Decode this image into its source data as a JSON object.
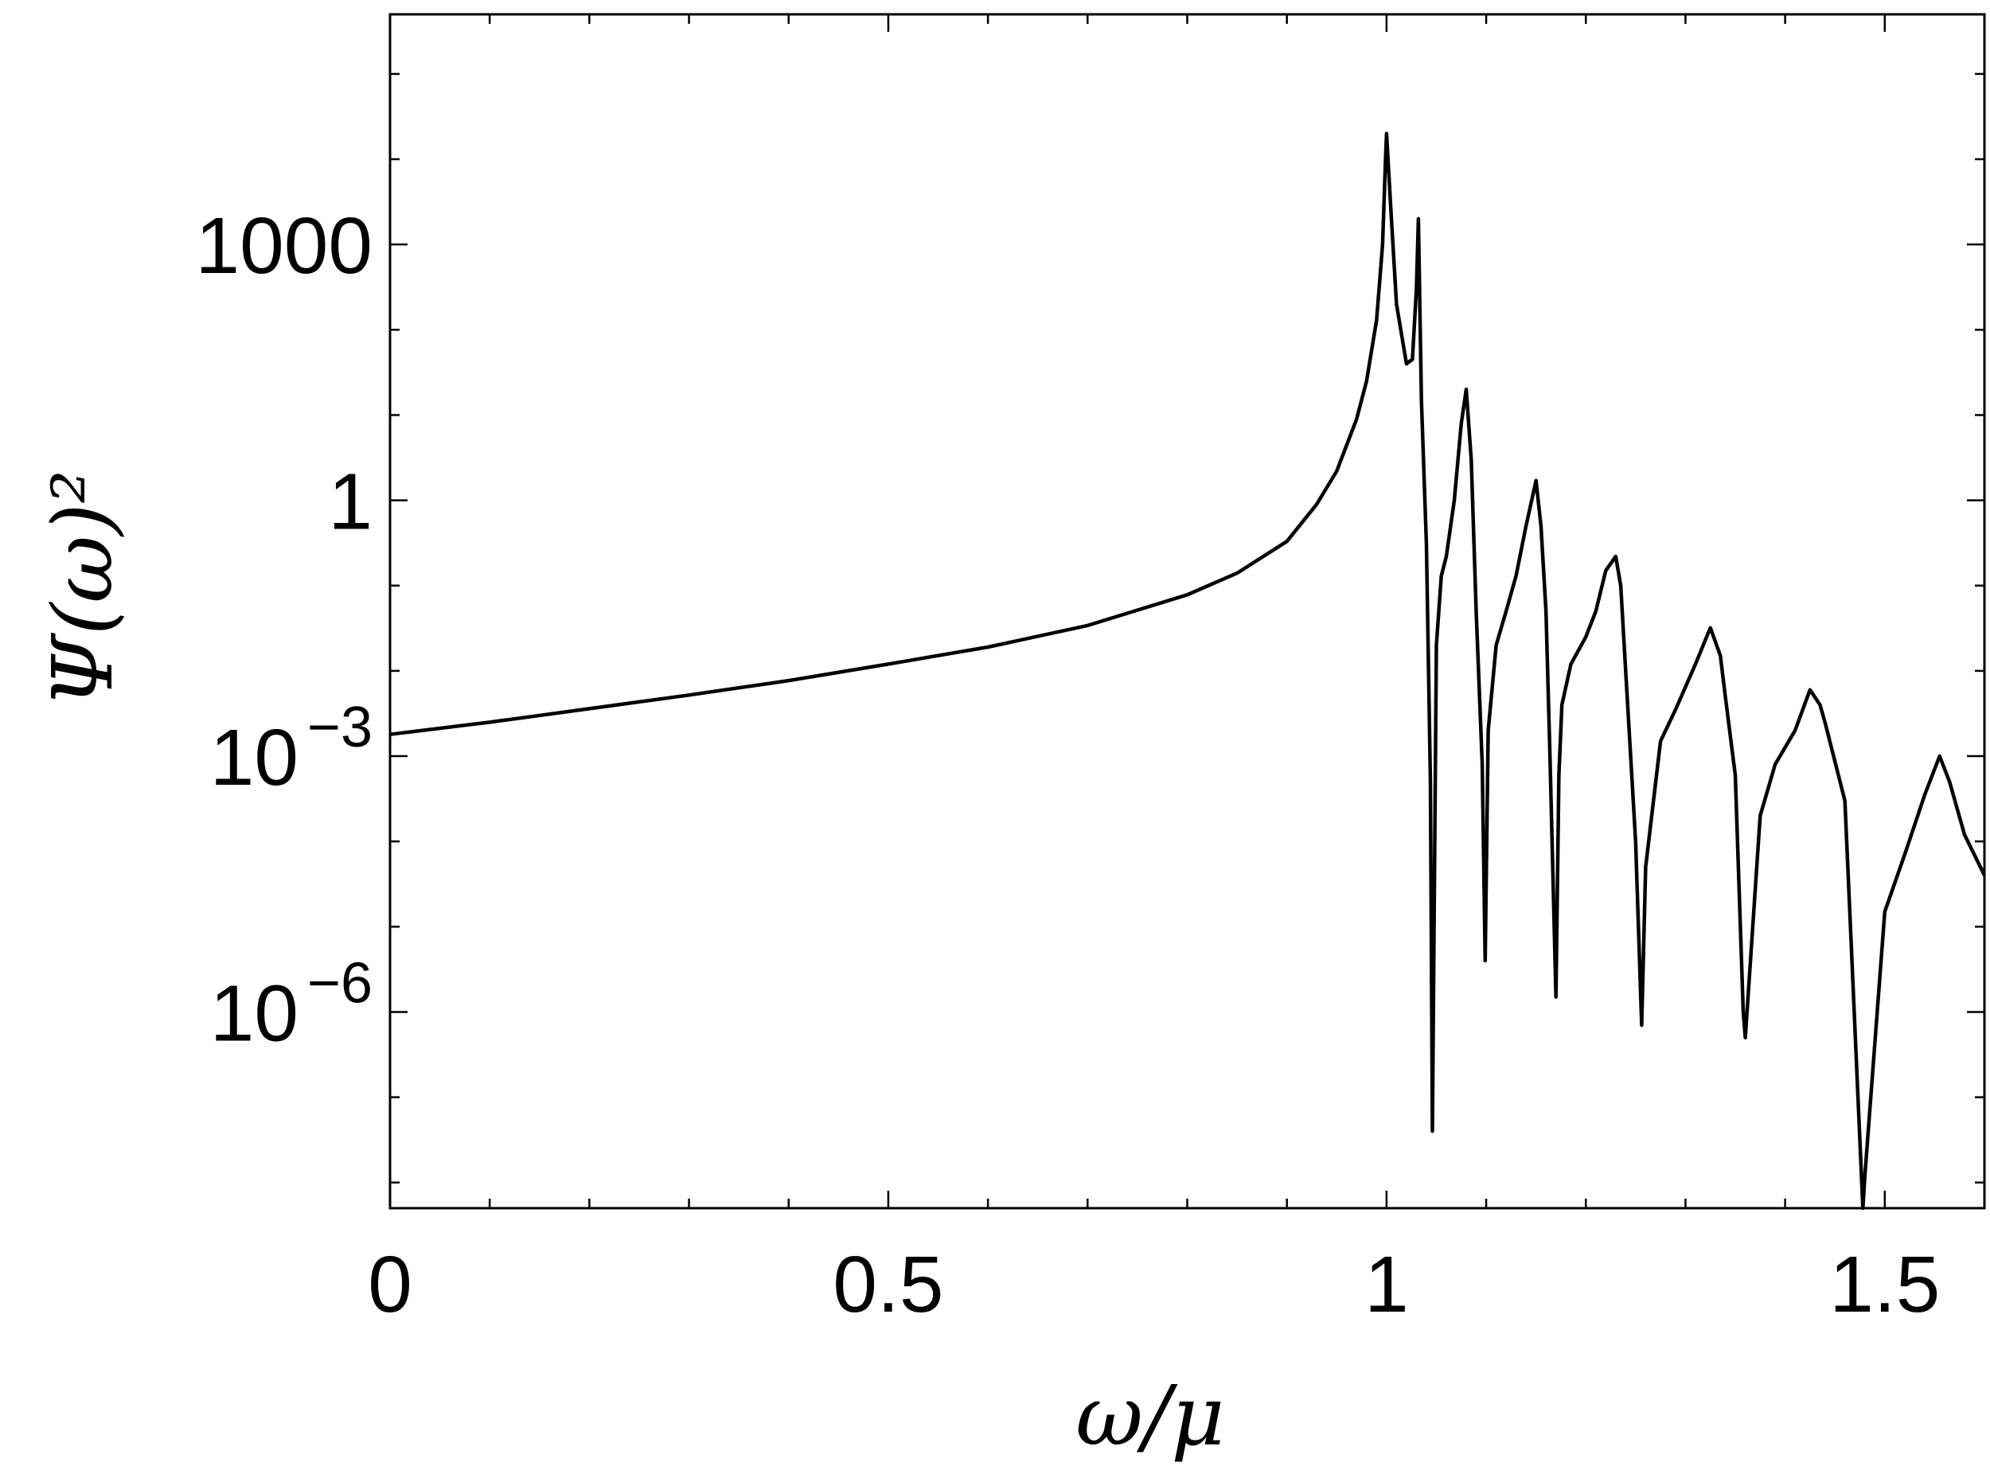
{
  "chart_data": {
    "type": "line",
    "title": "",
    "xlabel": "ω/μ",
    "ylabel": "Ψ(ω)²",
    "y_scale": "log",
    "xlim": [
      0,
      1.6
    ],
    "ylim": [
      5e-09,
      500000
    ],
    "grid": false,
    "legend": "none",
    "line_color": "#000000",
    "x_ticks": [
      {
        "value": 0,
        "label": "0"
      },
      {
        "value": 0.5,
        "label": "0.5"
      },
      {
        "value": 1,
        "label": "1"
      },
      {
        "value": 1.5,
        "label": "1.5"
      }
    ],
    "y_ticks": [
      {
        "value": 1e-06,
        "label": "10",
        "exp": "−6"
      },
      {
        "value": 0.001,
        "label": "10",
        "exp": "−3"
      },
      {
        "value": 1,
        "label": "1",
        "exp": ""
      },
      {
        "value": 1000,
        "label": "1000",
        "exp": ""
      }
    ],
    "series": [
      {
        "x": [
          0,
          0.1,
          0.2,
          0.3,
          0.4,
          0.5,
          0.6,
          0.7,
          0.8,
          0.85,
          0.9,
          0.93,
          0.95,
          0.97,
          0.98,
          0.99,
          0.996,
          0.999,
          1.0,
          1.004,
          1.01,
          1.02,
          1.026,
          1.03,
          1.032,
          1.035,
          1.04,
          1.044,
          1.046,
          1.05,
          1.055,
          1.06,
          1.068,
          1.075,
          1.08,
          1.085,
          1.09,
          1.096,
          1.099,
          1.102,
          1.11,
          1.12,
          1.13,
          1.14,
          1.15,
          1.155,
          1.16,
          1.164,
          1.17,
          1.173,
          1.176,
          1.185,
          1.2,
          1.21,
          1.22,
          1.23,
          1.235,
          1.24,
          1.25,
          1.256,
          1.26,
          1.275,
          1.29,
          1.31,
          1.325,
          1.335,
          1.34,
          1.35,
          1.358,
          1.36,
          1.375,
          1.39,
          1.41,
          1.425,
          1.435,
          1.44,
          1.46,
          1.478,
          1.48,
          1.5,
          1.52,
          1.54,
          1.555,
          1.565,
          1.58,
          1.6
        ],
        "y": [
          0.0018,
          0.0025,
          0.0036,
          0.0052,
          0.0077,
          0.012,
          0.019,
          0.034,
          0.078,
          0.14,
          0.33,
          0.9,
          2.2,
          9,
          25,
          130,
          1000,
          10000,
          20000,
          3000,
          200,
          40,
          45,
          300,
          2000,
          15,
          0.3,
          0.0005,
          4e-08,
          0.02,
          0.13,
          0.22,
          1,
          8,
          20,
          3,
          0.05,
          0.0008,
          4e-06,
          0.002,
          0.02,
          0.05,
          0.13,
          0.5,
          1.7,
          0.5,
          0.05,
          0.001,
          1.5e-06,
          0.0006,
          0.004,
          0.012,
          0.025,
          0.05,
          0.15,
          0.22,
          0.1,
          0.01,
          0.0001,
          7e-07,
          5e-05,
          0.0015,
          0.0035,
          0.012,
          0.032,
          0.015,
          0.005,
          0.0006,
          1e-06,
          5e-07,
          0.0002,
          0.0008,
          0.002,
          0.006,
          0.004,
          0.0025,
          0.0003,
          5e-09,
          1.2e-08,
          1.5e-05,
          7e-05,
          0.00035,
          0.001,
          0.0005,
          0.00012,
          4e-05
        ]
      }
    ]
  }
}
